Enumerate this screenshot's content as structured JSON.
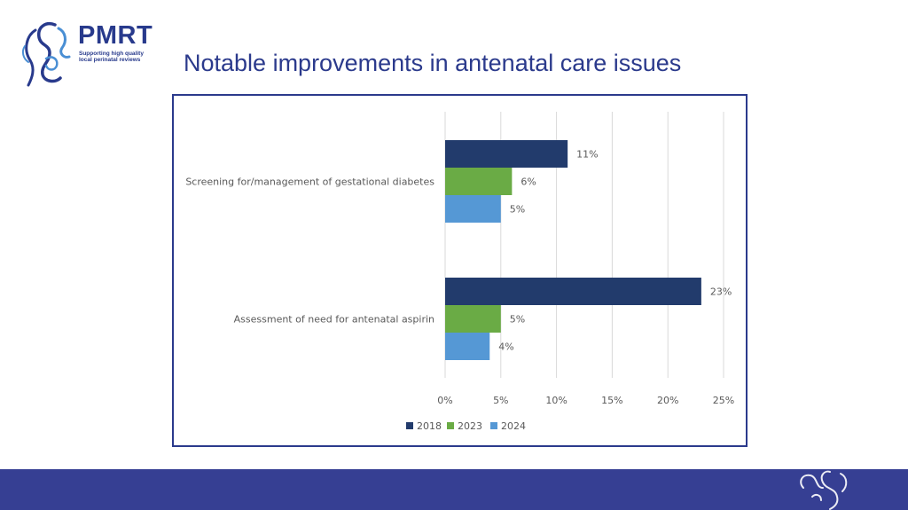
{
  "logo": {
    "name": "PMRT",
    "tagline_1": "Supporting high quality",
    "tagline_2": "local perinatal reviews"
  },
  "slide": {
    "title": "Notable improvements in antenatal care issues"
  },
  "colors": {
    "brand": "#2b3a8c",
    "footer": "#363f93",
    "s2018": "#223b6c",
    "s2023": "#6aab45",
    "s2024": "#5598d5",
    "grid": "#d9d9d9",
    "label": "#595959"
  },
  "chart_data": {
    "type": "bar",
    "orientation": "horizontal",
    "categories": [
      "Screening for/management of gestational diabetes",
      "Assessment of need for antenatal aspirin"
    ],
    "series": [
      {
        "name": "2018",
        "values": [
          11,
          23
        ],
        "labels": [
          "11%",
          "23%"
        ]
      },
      {
        "name": "2023",
        "values": [
          6,
          5
        ],
        "labels": [
          "6%",
          "5%"
        ]
      },
      {
        "name": "2024",
        "values": [
          5,
          4
        ],
        "labels": [
          "5%",
          "4%"
        ]
      }
    ],
    "xlim": [
      0,
      25
    ],
    "xticks": [
      0,
      5,
      10,
      15,
      20,
      25
    ],
    "xtick_labels": [
      "0%",
      "5%",
      "10%",
      "15%",
      "20%",
      "25%"
    ],
    "grid": true,
    "legend_position": "bottom"
  }
}
